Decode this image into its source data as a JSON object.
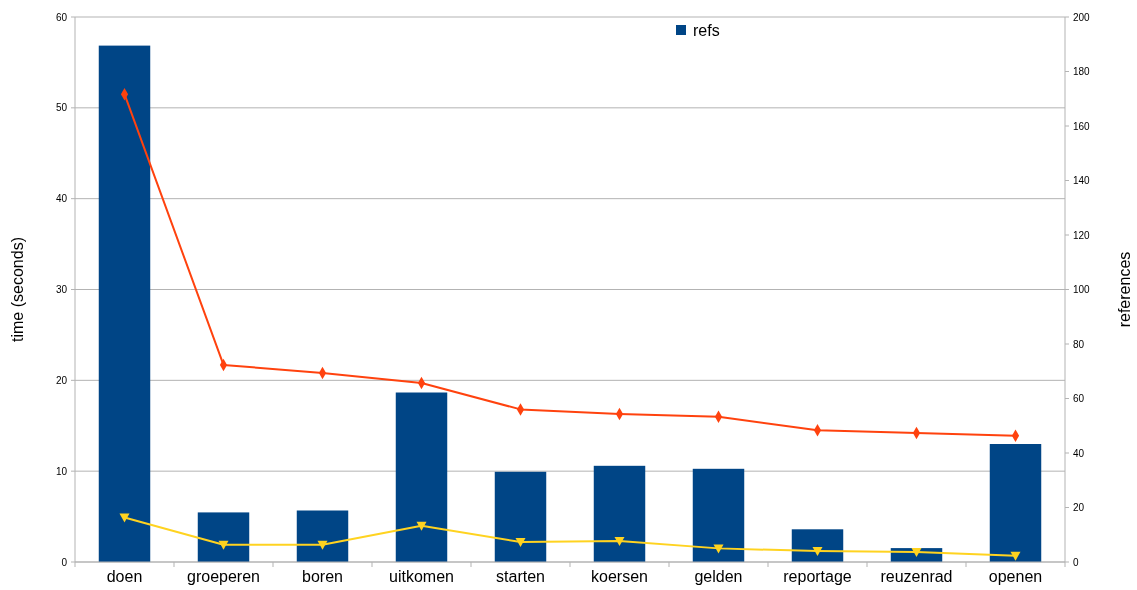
{
  "chart_data": {
    "type": "bar",
    "categories": [
      "doen",
      "groeperen",
      "boren",
      "uitkomen",
      "starten",
      "koersen",
      "gelden",
      "reportage",
      "reuzenrad",
      "openen"
    ],
    "series": [
      {
        "name": "refs",
        "axis": "y2",
        "color": "#004586",
        "values": [
          189.5,
          18.2,
          18.9,
          62.2,
          33.1,
          35.3,
          34.2,
          12,
          5.1,
          43.3
        ]
      },
      {
        "type": "line",
        "color": "#ff420e",
        "marker": "diamond",
        "values": [
          51.5,
          21.7,
          20.8,
          19.7,
          16.8,
          16.3,
          16.0,
          14.5,
          14.2,
          13.9
        ]
      },
      {
        "type": "line",
        "color": "#ffd320",
        "marker": "triangle",
        "values": [
          4.9,
          1.9,
          1.9,
          4.0,
          2.2,
          2.3,
          1.5,
          1.2,
          1.1,
          0.7
        ]
      }
    ],
    "ylabel": "time (seconds)",
    "y2label": "references",
    "ylim": [
      0,
      60
    ],
    "yticks": [
      0,
      10,
      20,
      30,
      40,
      50,
      60
    ],
    "y2lim": [
      0,
      200
    ],
    "y2ticks": [
      0,
      20,
      40,
      60,
      80,
      100,
      120,
      140,
      160,
      180,
      200
    ],
    "grid": "y",
    "legend": "top"
  }
}
